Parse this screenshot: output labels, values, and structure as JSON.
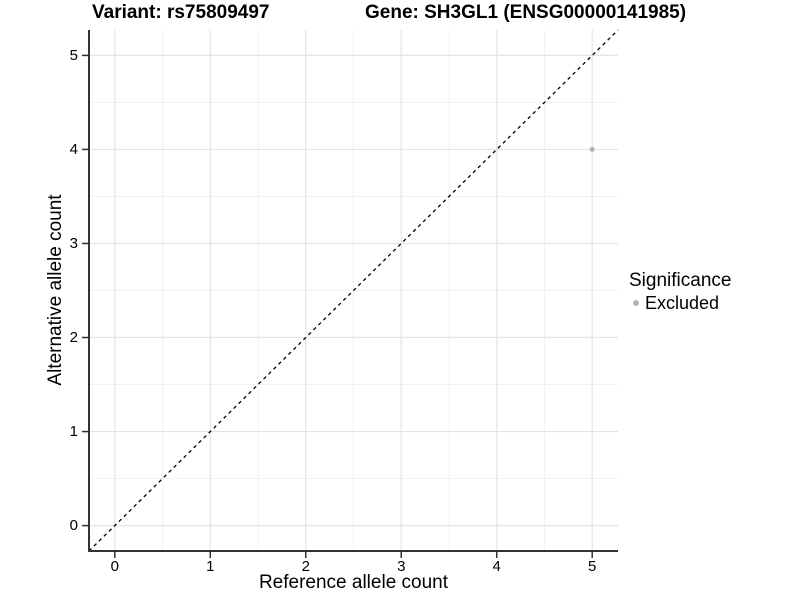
{
  "titles": {
    "left": "Variant: rs75809497",
    "right": "Gene: SH3GL1 (ENSG00000141985)"
  },
  "chart_data": {
    "type": "scatter",
    "xlabel": "Reference allele count",
    "ylabel": "Alternative allele count",
    "xlim": [
      -0.27,
      5.27
    ],
    "ylim": [
      -0.27,
      5.27
    ],
    "xticks": [
      0,
      1,
      2,
      3,
      4,
      5
    ],
    "yticks": [
      0,
      1,
      2,
      3,
      4,
      5
    ],
    "xminor": [
      0.5,
      1.5,
      2.5,
      3.5,
      4.5
    ],
    "yminor": [
      0.5,
      1.5,
      2.5,
      3.5,
      4.5
    ],
    "grid": "major and minor gridlines on white background",
    "points": [
      {
        "x": 5,
        "y": 4,
        "series": "Excluded"
      }
    ],
    "reference_line": {
      "slope": 1,
      "intercept": 0,
      "style": "dashed"
    },
    "legend": {
      "title": "Significance",
      "position": "right",
      "entries": [
        {
          "label": "Excluded",
          "marker": "circle",
          "color": "#b4b4b4"
        }
      ]
    },
    "colors": {
      "point_excluded": "#b4b4b4",
      "grid_major": "#e4e4e4",
      "grid_minor": "#f1f1f1",
      "axis_line": "#333333",
      "reference_line": "#000000",
      "text": "#000000",
      "background": "#ffffff"
    }
  }
}
